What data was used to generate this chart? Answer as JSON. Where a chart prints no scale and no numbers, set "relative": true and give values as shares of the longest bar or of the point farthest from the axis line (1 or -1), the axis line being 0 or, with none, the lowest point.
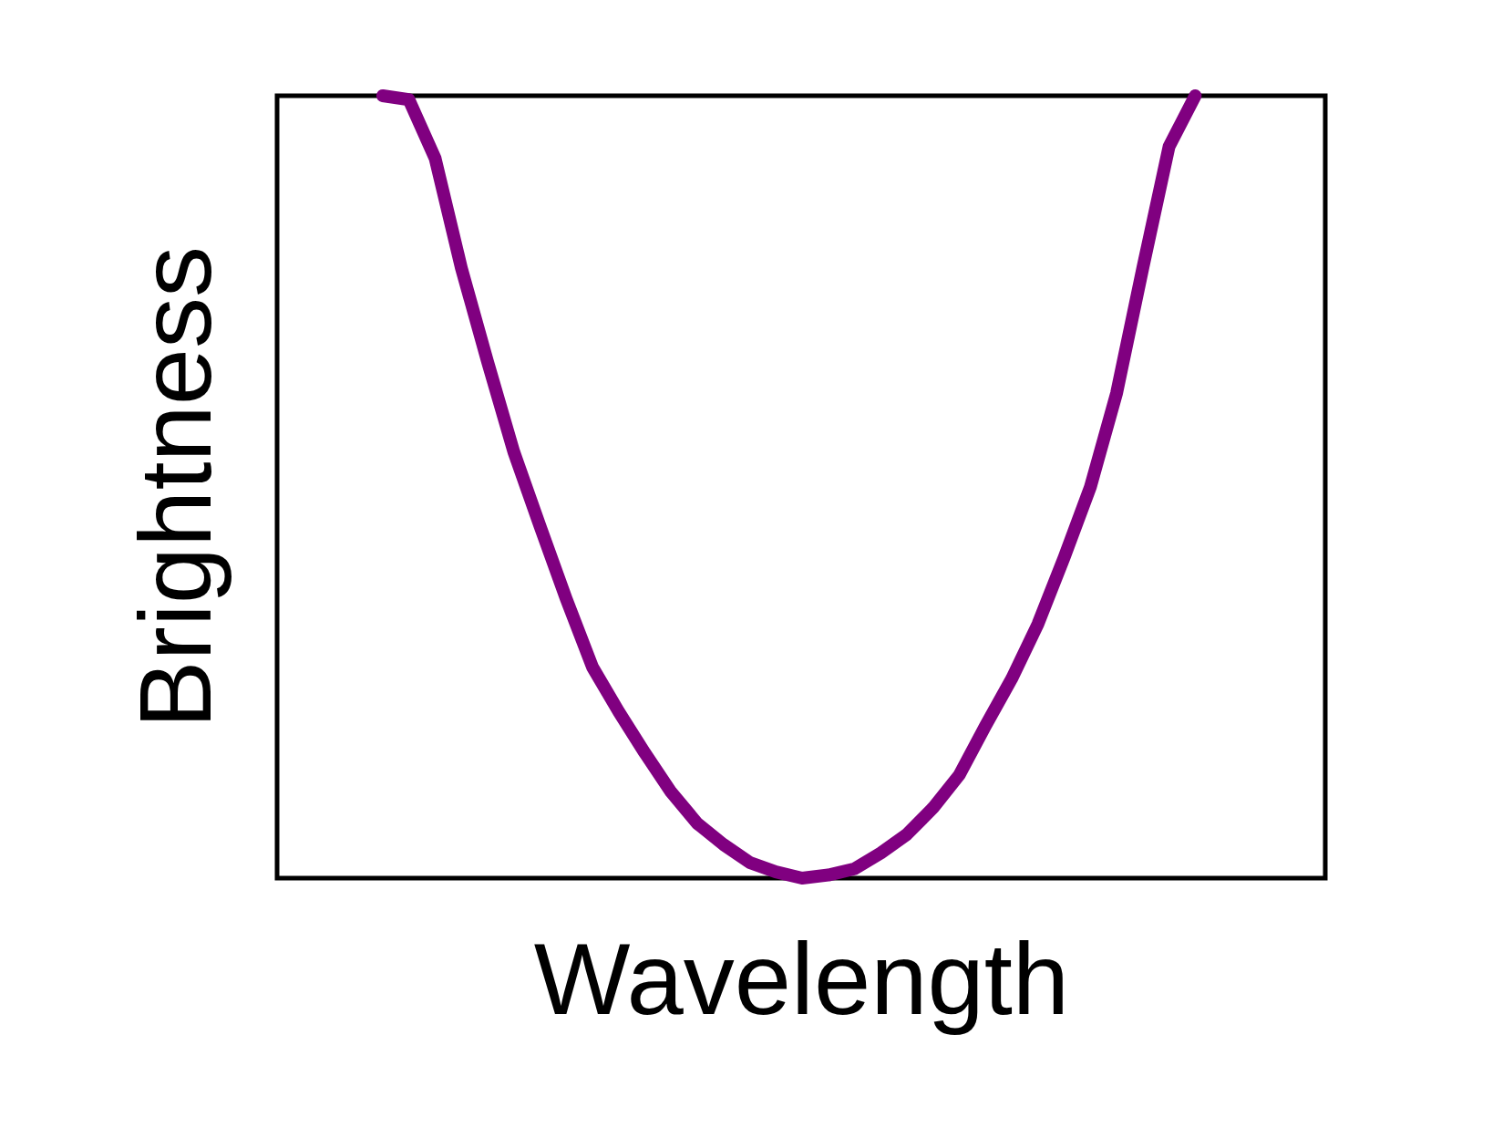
{
  "chart_data": {
    "type": "line",
    "relative": true,
    "xlabel": "Wavelength",
    "ylabel": "Brightness",
    "grid": false,
    "categories": [
      null,
      null,
      null,
      null,
      null,
      null,
      null,
      null,
      null,
      null,
      null,
      null,
      null,
      null,
      null,
      null,
      null,
      null,
      null,
      null,
      null,
      null,
      null,
      null,
      null,
      null,
      null,
      null,
      null,
      null,
      null,
      null
    ],
    "series": [
      {
        "color": "#800080",
        "values": [
          1,
          0.995,
          0.92,
          0.78,
          0.66,
          0.545,
          0.45,
          0.357,
          0.27,
          0.213,
          0.16,
          0.11,
          0.07,
          0.043,
          0.02,
          0.008,
          0,
          0.004,
          0.012,
          0.032,
          0.056,
          0.09,
          0.132,
          0.195,
          0.255,
          0.325,
          0.41,
          0.5,
          0.62,
          0.78,
          0.935,
          1
        ]
      }
    ]
  }
}
